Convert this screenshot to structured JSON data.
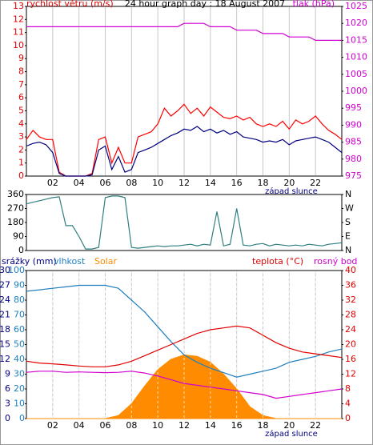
{
  "chart_data": [
    {
      "type": "line",
      "title": "24 hour graph day : 18 August 2007",
      "ylabel": "rychlost větru (m/s)",
      "ylabel_color": "#e00000",
      "y2label": "tlak (hPa)",
      "y2label_color": "#d000d0",
      "annotation": "západ slunce",
      "xlim": [
        0,
        24
      ],
      "xticks": [
        {
          "value": 2,
          "label": "02"
        },
        {
          "value": 4,
          "label": "04"
        },
        {
          "value": 6,
          "label": "06"
        },
        {
          "value": 8,
          "label": "08"
        },
        10,
        12,
        14,
        16,
        18,
        20,
        22
      ],
      "ylim": [
        0,
        13
      ],
      "yticks": [
        0,
        1,
        2,
        3,
        4,
        5,
        6,
        7,
        8,
        9,
        10,
        11,
        12,
        13
      ],
      "y2lim": [
        975,
        1025
      ],
      "y2ticks": [
        975,
        980,
        985,
        990,
        995,
        1000,
        1005,
        1010,
        1015,
        1020,
        1025
      ],
      "x": [
        0,
        0.5,
        1,
        1.5,
        2,
        2.5,
        3,
        3.5,
        4,
        4.5,
        5,
        5.5,
        6,
        6.5,
        7,
        7.5,
        8,
        8.5,
        9,
        9.5,
        10,
        10.5,
        11,
        11.5,
        12,
        12.5,
        13,
        13.5,
        14,
        14.5,
        15,
        15.5,
        16,
        16.5,
        17,
        17.5,
        18,
        18.5,
        19,
        19.5,
        20,
        20.5,
        21,
        21.5,
        22,
        22.5,
        23,
        23.5,
        24
      ],
      "series": [
        {
          "color": "#ff0000",
          "axis": "y",
          "values": [
            2.8,
            3.5,
            3.0,
            2.8,
            2.8,
            0.3,
            0,
            0,
            0,
            0,
            0.2,
            2.8,
            3.0,
            1.0,
            2.2,
            1.0,
            1.0,
            3.0,
            3.2,
            3.4,
            4.0,
            5.2,
            4.6,
            5.0,
            5.5,
            4.8,
            5.2,
            4.6,
            5.3,
            4.9,
            4.5,
            4.4,
            4.6,
            4.3,
            4.5,
            4.0,
            3.8,
            4.0,
            3.8,
            4.2,
            3.6,
            4.3,
            4.0,
            4.2,
            4.6,
            4.0,
            3.5,
            3.2,
            2.8
          ]
        },
        {
          "color": "#000080",
          "axis": "y",
          "values": [
            2.3,
            2.5,
            2.6,
            2.4,
            1.8,
            0.2,
            0,
            0,
            0,
            0,
            0.1,
            2.0,
            2.3,
            0.5,
            1.5,
            0.3,
            0.5,
            1.8,
            2.0,
            2.2,
            2.5,
            2.8,
            3.1,
            3.3,
            3.6,
            3.5,
            3.8,
            3.4,
            3.6,
            3.3,
            3.5,
            3.2,
            3.4,
            3.0,
            2.9,
            2.8,
            2.6,
            2.7,
            2.6,
            2.8,
            2.4,
            2.7,
            2.8,
            2.9,
            3.0,
            2.8,
            2.6,
            2.2,
            1.8
          ]
        },
        {
          "color": "#d000d0",
          "axis": "y2",
          "values": [
            1019,
            1019,
            1019,
            1019,
            1019,
            1019,
            1019,
            1019,
            1019,
            1019,
            1019,
            1019,
            1019,
            1019,
            1019,
            1019,
            1019,
            1019,
            1019,
            1019,
            1019,
            1019,
            1019,
            1019,
            1020,
            1020,
            1020,
            1020,
            1019,
            1019,
            1019,
            1019,
            1018,
            1018,
            1018,
            1018,
            1017,
            1017,
            1017,
            1017,
            1016,
            1016,
            1016,
            1016,
            1015,
            1015,
            1015,
            1015,
            1015
          ]
        }
      ]
    },
    {
      "type": "line",
      "xlim": [
        0,
        24
      ],
      "ylim": [
        0,
        360
      ],
      "yticks": [
        0,
        90,
        180,
        270,
        360
      ],
      "y2lim": [
        0,
        360
      ],
      "y2ticks": [
        {
          "value": 0,
          "label": "N"
        },
        {
          "value": 90,
          "label": "E"
        },
        {
          "value": 180,
          "label": "S"
        },
        {
          "value": 270,
          "label": "W"
        },
        {
          "value": 360,
          "label": "N"
        }
      ],
      "x": [
        0,
        0.5,
        1,
        1.5,
        2,
        2.5,
        3,
        3.5,
        4,
        4.5,
        5,
        5.5,
        6,
        6.5,
        7,
        7.5,
        8,
        8.5,
        9,
        9.5,
        10,
        10.5,
        11,
        11.5,
        12,
        12.5,
        13,
        13.5,
        14,
        14.5,
        15,
        15.5,
        16,
        16.5,
        17,
        17.5,
        18,
        18.5,
        19,
        19.5,
        20,
        20.5,
        21,
        21.5,
        22,
        22.5,
        23,
        23.5,
        24
      ],
      "series": [
        {
          "color": "#2f7f7f",
          "axis": "y",
          "values": [
            300,
            310,
            320,
            330,
            340,
            345,
            160,
            160,
            90,
            10,
            10,
            20,
            340,
            350,
            350,
            340,
            20,
            15,
            20,
            25,
            30,
            25,
            30,
            30,
            35,
            40,
            30,
            40,
            35,
            250,
            30,
            40,
            270,
            35,
            30,
            40,
            45,
            30,
            40,
            35,
            30,
            35,
            30,
            40,
            35,
            30,
            40,
            45,
            50
          ]
        }
      ]
    },
    {
      "type": "line",
      "annotation": "západ slunce",
      "y3label": "srážky (mm)",
      "y3label_color": "#000080",
      "xlim": [
        0,
        24
      ],
      "xticks": [
        {
          "value": 2,
          "label": "02"
        },
        {
          "value": 4,
          "label": "04"
        },
        {
          "value": 6,
          "label": "06"
        },
        {
          "value": 8,
          "label": "08"
        },
        10,
        12,
        14,
        16,
        18,
        20,
        22
      ],
      "ylim": [
        0,
        100
      ],
      "yticks": [
        0,
        10,
        20,
        30,
        40,
        50,
        60,
        70,
        80,
        90,
        100
      ],
      "ytick_color": "#1f7fbf",
      "y3lim": [
        0,
        30
      ],
      "y3ticks": [
        0,
        3,
        6,
        9,
        12,
        15,
        18,
        21,
        24,
        27,
        30
      ],
      "y3tick_color": "#000080",
      "y2lim": [
        0,
        40
      ],
      "y2ticks": [
        0,
        4,
        8,
        12,
        16,
        20,
        24,
        28,
        32,
        36,
        40
      ],
      "y2tick_color": "#e00000",
      "x": [
        0,
        1,
        2,
        3,
        4,
        5,
        6,
        7,
        8,
        9,
        10,
        11,
        12,
        13,
        14,
        15,
        16,
        17,
        18,
        19,
        20,
        21,
        22,
        23,
        24
      ],
      "series": [
        {
          "name": "Solar",
          "color": "#ff8c00",
          "axis": "y",
          "kind": "area",
          "values": [
            0,
            0,
            0,
            0,
            0,
            0,
            0,
            2,
            10,
            22,
            33,
            40,
            43,
            42,
            38,
            30,
            20,
            8,
            2,
            0,
            0,
            0,
            0,
            0,
            0
          ]
        },
        {
          "name": "vlhkost",
          "color": "#1f7fbf",
          "axis": "y",
          "values": [
            86,
            87,
            88,
            89,
            90,
            90,
            90,
            88,
            80,
            72,
            62,
            52,
            43,
            38,
            34,
            31,
            28,
            30,
            32,
            34,
            38,
            40,
            42,
            45,
            47
          ]
        },
        {
          "name": "teplota (°C)",
          "color": "#e00000",
          "axis": "y2",
          "values": [
            15.5,
            15,
            14.8,
            14.5,
            14.2,
            14,
            14,
            14.5,
            15.5,
            17,
            18.5,
            20,
            21.5,
            23,
            24,
            24.5,
            25,
            24.5,
            22.5,
            20.5,
            19,
            18,
            17.5,
            17,
            16.5
          ]
        },
        {
          "name": "rosný bod",
          "color": "#d000d0",
          "axis": "y2",
          "values": [
            12.5,
            12.8,
            12.8,
            12.5,
            12.6,
            12.5,
            12.4,
            12.5,
            12.8,
            12.3,
            11.5,
            10.5,
            9.5,
            9,
            8.5,
            8,
            7.5,
            7,
            6.5,
            5.5,
            6,
            6.5,
            7,
            7.5,
            8
          ]
        }
      ]
    }
  ]
}
